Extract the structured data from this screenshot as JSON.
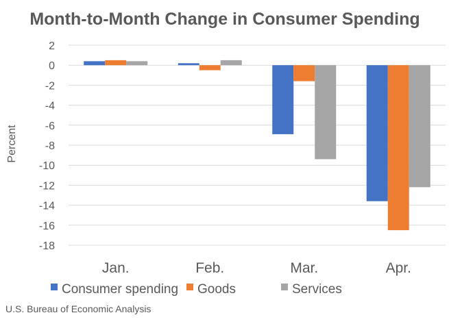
{
  "chart_data": {
    "type": "bar",
    "title": "Month-to-Month Change in Consumer Spending",
    "xlabel": "",
    "ylabel": "Percent",
    "categories": [
      "Jan.",
      "Feb.",
      "Mar.",
      "Apr."
    ],
    "series": [
      {
        "name": "Consumer spending",
        "color": "#4472C4",
        "values": [
          0.4,
          0.2,
          -6.9,
          -13.6
        ]
      },
      {
        "name": "Goods",
        "color": "#ED7D31",
        "values": [
          0.5,
          -0.5,
          -1.6,
          -16.5
        ]
      },
      {
        "name": "Services",
        "color": "#A5A5A5",
        "values": [
          0.4,
          0.5,
          -9.4,
          -12.2
        ]
      }
    ],
    "ylim": [
      -18,
      2
    ],
    "yticks": [
      "2",
      "0",
      "-2",
      "-4",
      "-6",
      "-8",
      "-10",
      "-12",
      "-14",
      "-16",
      "-18"
    ],
    "grid": true,
    "legend_position": "bottom"
  },
  "source": "U.S. Bureau of Economic Analysis"
}
